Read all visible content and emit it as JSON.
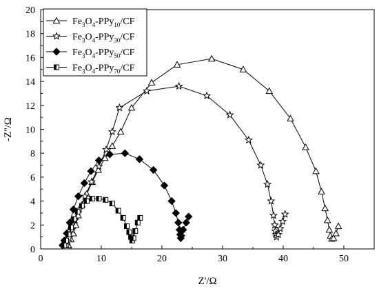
{
  "chart_data": {
    "type": "scatter",
    "title": "",
    "xlabel": "Z'/Ω",
    "ylabel": "-Z''/Ω",
    "xlim": [
      0,
      55
    ],
    "ylim": [
      0,
      20
    ],
    "xticks": [
      0,
      10,
      20,
      30,
      40,
      50
    ],
    "yticks": [
      0,
      2,
      4,
      6,
      8,
      10,
      12,
      14,
      16,
      18,
      20
    ],
    "grid": false,
    "legend_position": "top-left",
    "series": [
      {
        "name": "Fe3O4-PPy10/CF",
        "name_parts": [
          "Fe",
          "3",
          "O",
          "4",
          "-PPy",
          "10",
          "/CF"
        ],
        "marker": "triangle",
        "points": [
          [
            4.6,
            0.3
          ],
          [
            5.0,
            0.8
          ],
          [
            5.4,
            1.3
          ],
          [
            5.8,
            2.0
          ],
          [
            6.2,
            2.8
          ],
          [
            6.8,
            3.7
          ],
          [
            7.6,
            4.6
          ],
          [
            8.5,
            5.6
          ],
          [
            9.5,
            6.6
          ],
          [
            10.6,
            7.6
          ],
          [
            11.8,
            8.6
          ],
          [
            13.2,
            9.8
          ],
          [
            15.0,
            11.8
          ],
          [
            18.3,
            13.9
          ],
          [
            22.5,
            15.4
          ],
          [
            28.2,
            15.9
          ],
          [
            33.4,
            15.0
          ],
          [
            37.7,
            13.2
          ],
          [
            41.2,
            10.9
          ],
          [
            43.7,
            8.5
          ],
          [
            45.4,
            6.5
          ],
          [
            46.3,
            4.8
          ],
          [
            46.9,
            3.4
          ],
          [
            47.3,
            2.4
          ],
          [
            47.6,
            1.6
          ],
          [
            47.8,
            1.1
          ],
          [
            48.0,
            0.85
          ],
          [
            48.3,
            0.9
          ],
          [
            48.7,
            1.3
          ],
          [
            49.1,
            1.9
          ]
        ]
      },
      {
        "name": "Fe3O4-PPy30/CF",
        "name_parts": [
          "Fe",
          "3",
          "O",
          "4",
          "-PPy",
          "30",
          "/CF"
        ],
        "marker": "star",
        "points": [
          [
            4.3,
            0.3
          ],
          [
            4.7,
            0.9
          ],
          [
            5.2,
            1.6
          ],
          [
            5.7,
            2.4
          ],
          [
            6.4,
            3.3
          ],
          [
            7.3,
            4.4
          ],
          [
            8.4,
            5.6
          ],
          [
            9.6,
            6.9
          ],
          [
            10.8,
            8.3
          ],
          [
            11.8,
            9.8
          ],
          [
            13.0,
            11.8
          ],
          [
            17.5,
            13.2
          ],
          [
            22.8,
            13.6
          ],
          [
            27.4,
            12.8
          ],
          [
            31.2,
            11.2
          ],
          [
            34.3,
            9.1
          ],
          [
            36.3,
            7.0
          ],
          [
            37.4,
            5.4
          ],
          [
            38.0,
            4.0
          ],
          [
            38.4,
            2.8
          ],
          [
            38.6,
            2.0
          ],
          [
            38.7,
            1.5
          ],
          [
            38.8,
            1.2
          ],
          [
            38.9,
            1.0
          ],
          [
            39.2,
            1.2
          ],
          [
            39.5,
            1.7
          ],
          [
            39.9,
            2.3
          ],
          [
            40.3,
            2.9
          ]
        ]
      },
      {
        "name": "Fe3O4-PPy50/CF",
        "name_parts": [
          "Fe",
          "3",
          "O",
          "4",
          "-PPy",
          "50",
          "/CF"
        ],
        "marker": "diamond",
        "points": [
          [
            3.6,
            0.3
          ],
          [
            3.9,
            0.7
          ],
          [
            4.3,
            1.3
          ],
          [
            4.8,
            2.2
          ],
          [
            5.4,
            3.3
          ],
          [
            6.2,
            4.4
          ],
          [
            7.2,
            5.5
          ],
          [
            8.3,
            6.5
          ],
          [
            9.6,
            7.4
          ],
          [
            11.4,
            7.9
          ],
          [
            13.9,
            8.0
          ],
          [
            16.3,
            7.5
          ],
          [
            18.6,
            6.6
          ],
          [
            20.4,
            5.3
          ],
          [
            21.6,
            4.0
          ],
          [
            22.3,
            3.0
          ],
          [
            22.7,
            2.2
          ],
          [
            22.9,
            1.6
          ],
          [
            23.0,
            1.2
          ],
          [
            23.1,
            0.9
          ],
          [
            23.2,
            1.1
          ],
          [
            23.5,
            1.6
          ],
          [
            24.0,
            2.2
          ],
          [
            24.4,
            2.7
          ]
        ]
      },
      {
        "name": "Fe3O4-PPy70/CF",
        "name_parts": [
          "Fe",
          "3",
          "O",
          "4",
          "-PPy",
          "70",
          "/CF"
        ],
        "marker": "square",
        "points": [
          [
            3.9,
            0.3
          ],
          [
            4.2,
            0.7
          ],
          [
            4.6,
            1.2
          ],
          [
            5.0,
            1.8
          ],
          [
            5.5,
            2.5
          ],
          [
            6.1,
            3.1
          ],
          [
            6.8,
            3.6
          ],
          [
            7.6,
            4.0
          ],
          [
            8.5,
            4.2
          ],
          [
            9.6,
            4.2
          ],
          [
            10.7,
            4.1
          ],
          [
            11.8,
            3.8
          ],
          [
            12.8,
            3.2
          ],
          [
            13.6,
            2.6
          ],
          [
            14.2,
            1.9
          ],
          [
            14.6,
            1.4
          ],
          [
            14.9,
            1.0
          ],
          [
            15.1,
            0.7
          ],
          [
            15.3,
            0.9
          ],
          [
            15.6,
            1.5
          ],
          [
            16.0,
            2.2
          ],
          [
            16.4,
            2.6
          ]
        ]
      }
    ]
  }
}
